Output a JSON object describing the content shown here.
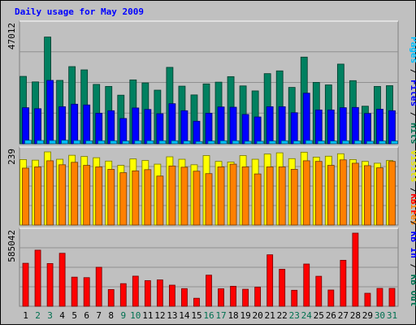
{
  "chart_data": {
    "type": "bar",
    "title": "Daily usage for May 2009",
    "categories": [
      "1",
      "2",
      "3",
      "4",
      "5",
      "6",
      "7",
      "8",
      "9",
      "10",
      "11",
      "12",
      "13",
      "14",
      "15",
      "16",
      "17",
      "18",
      "19",
      "20",
      "21",
      "22",
      "23",
      "24",
      "25",
      "26",
      "27",
      "28",
      "29",
      "30",
      "31"
    ],
    "weekend_days": [
      "2",
      "3",
      "9",
      "10",
      "16",
      "17",
      "23",
      "24",
      "30",
      "31"
    ],
    "panels": [
      {
        "id": "hits-files-pages",
        "axis_max_label": "47012",
        "ylim": [
          0,
          47012
        ],
        "side_labels": [
          {
            "text": "Pages",
            "color": "#00c0ff"
          },
          {
            "text": "Files",
            "color": "#0000ff"
          },
          {
            "text": "Hits",
            "color": "#007050"
          }
        ],
        "separator": " / ",
        "series": [
          {
            "name": "Hits",
            "color": "#008060",
            "values": [
              26900,
              24700,
              42600,
              25300,
              30800,
              29500,
              23700,
              22900,
              19400,
              25500,
              24300,
              21400,
              30500,
              23000,
              19500,
              23900,
              24600,
              26800,
              23100,
              21100,
              28000,
              29100,
              22500,
              34600,
              24500,
              23500,
              31800,
              25200,
              15000,
              22900,
              23200
            ]
          },
          {
            "name": "Files",
            "color": "#0000ff",
            "values": [
              14400,
              14000,
              25300,
              14800,
              15800,
              15500,
              12200,
              13200,
              10100,
              14300,
              13700,
              12000,
              16000,
              13200,
              9000,
              12200,
              14700,
              14600,
              11700,
              10700,
              14800,
              14800,
              12400,
              20200,
              13500,
              13500,
              14400,
              14500,
              12100,
              13800,
              13200
            ]
          },
          {
            "name": "Pages",
            "color": "#00c0ff",
            "values": [
              1400,
              1300,
              1300,
              1400,
              1300,
              1200,
              1200,
              1200,
              1100,
              1200,
              1200,
              1200,
              1200,
              1100,
              900,
              1100,
              1200,
              1200,
              1000,
              1000,
              1100,
              1200,
              1100,
              1300,
              1100,
              1100,
              1200,
              1200,
              1000,
              1100,
              1100
            ]
          }
        ]
      },
      {
        "id": "visits-sites",
        "axis_max_label": "239",
        "ylim": [
          0,
          239
        ],
        "side_labels": [
          {
            "text": "Visits",
            "color": "#e8e800"
          },
          {
            "text": "Sites",
            "color": "#ff8000"
          }
        ],
        "separator": " / ",
        "series": [
          {
            "name": "Visits",
            "color": "#ffff00",
            "values": [
              214,
              212,
              239,
              215,
              228,
              224,
              220,
              209,
              195,
              216,
              211,
              199,
              223,
              215,
              197,
              227,
              208,
              206,
              227,
              215,
              232,
              236,
              217,
              238,
              222,
              225,
              233,
              214,
              208,
              202,
              211
            ]
          },
          {
            "name": "Sites",
            "color": "#ff8000",
            "values": [
              186,
              190,
              210,
              197,
              205,
              195,
              190,
              182,
              171,
              177,
              181,
              160,
              193,
              189,
              176,
              168,
              190,
              199,
              190,
              167,
              190,
              190,
              182,
              210,
              208,
              195,
              213,
              202,
              194,
              187,
              208
            ]
          }
        ]
      },
      {
        "id": "kbytes",
        "axis_max_label": "585042",
        "ylim": [
          0,
          585042
        ],
        "side_labels": [
          {
            "text": "KB F",
            "color": "#ff0000"
          },
          {
            "text": "KB In",
            "color": "#0000ff"
          },
          {
            "text": "KB Out",
            "color": "#007050"
          }
        ],
        "separator": " / ",
        "series": [
          {
            "name": "KB F",
            "color": "#ff0000",
            "values": [
              344000,
              449000,
              342000,
              424000,
              233000,
              229000,
              312000,
              134000,
              181000,
              241000,
              205000,
              211000,
              169000,
              141000,
              64000,
              249000,
              140000,
              160000,
              136000,
              153000,
              412000,
              296000,
              128000,
              338000,
              240000,
              130000,
              368000,
              585042,
              104000,
              143000,
              143000
            ]
          }
        ]
      }
    ]
  }
}
